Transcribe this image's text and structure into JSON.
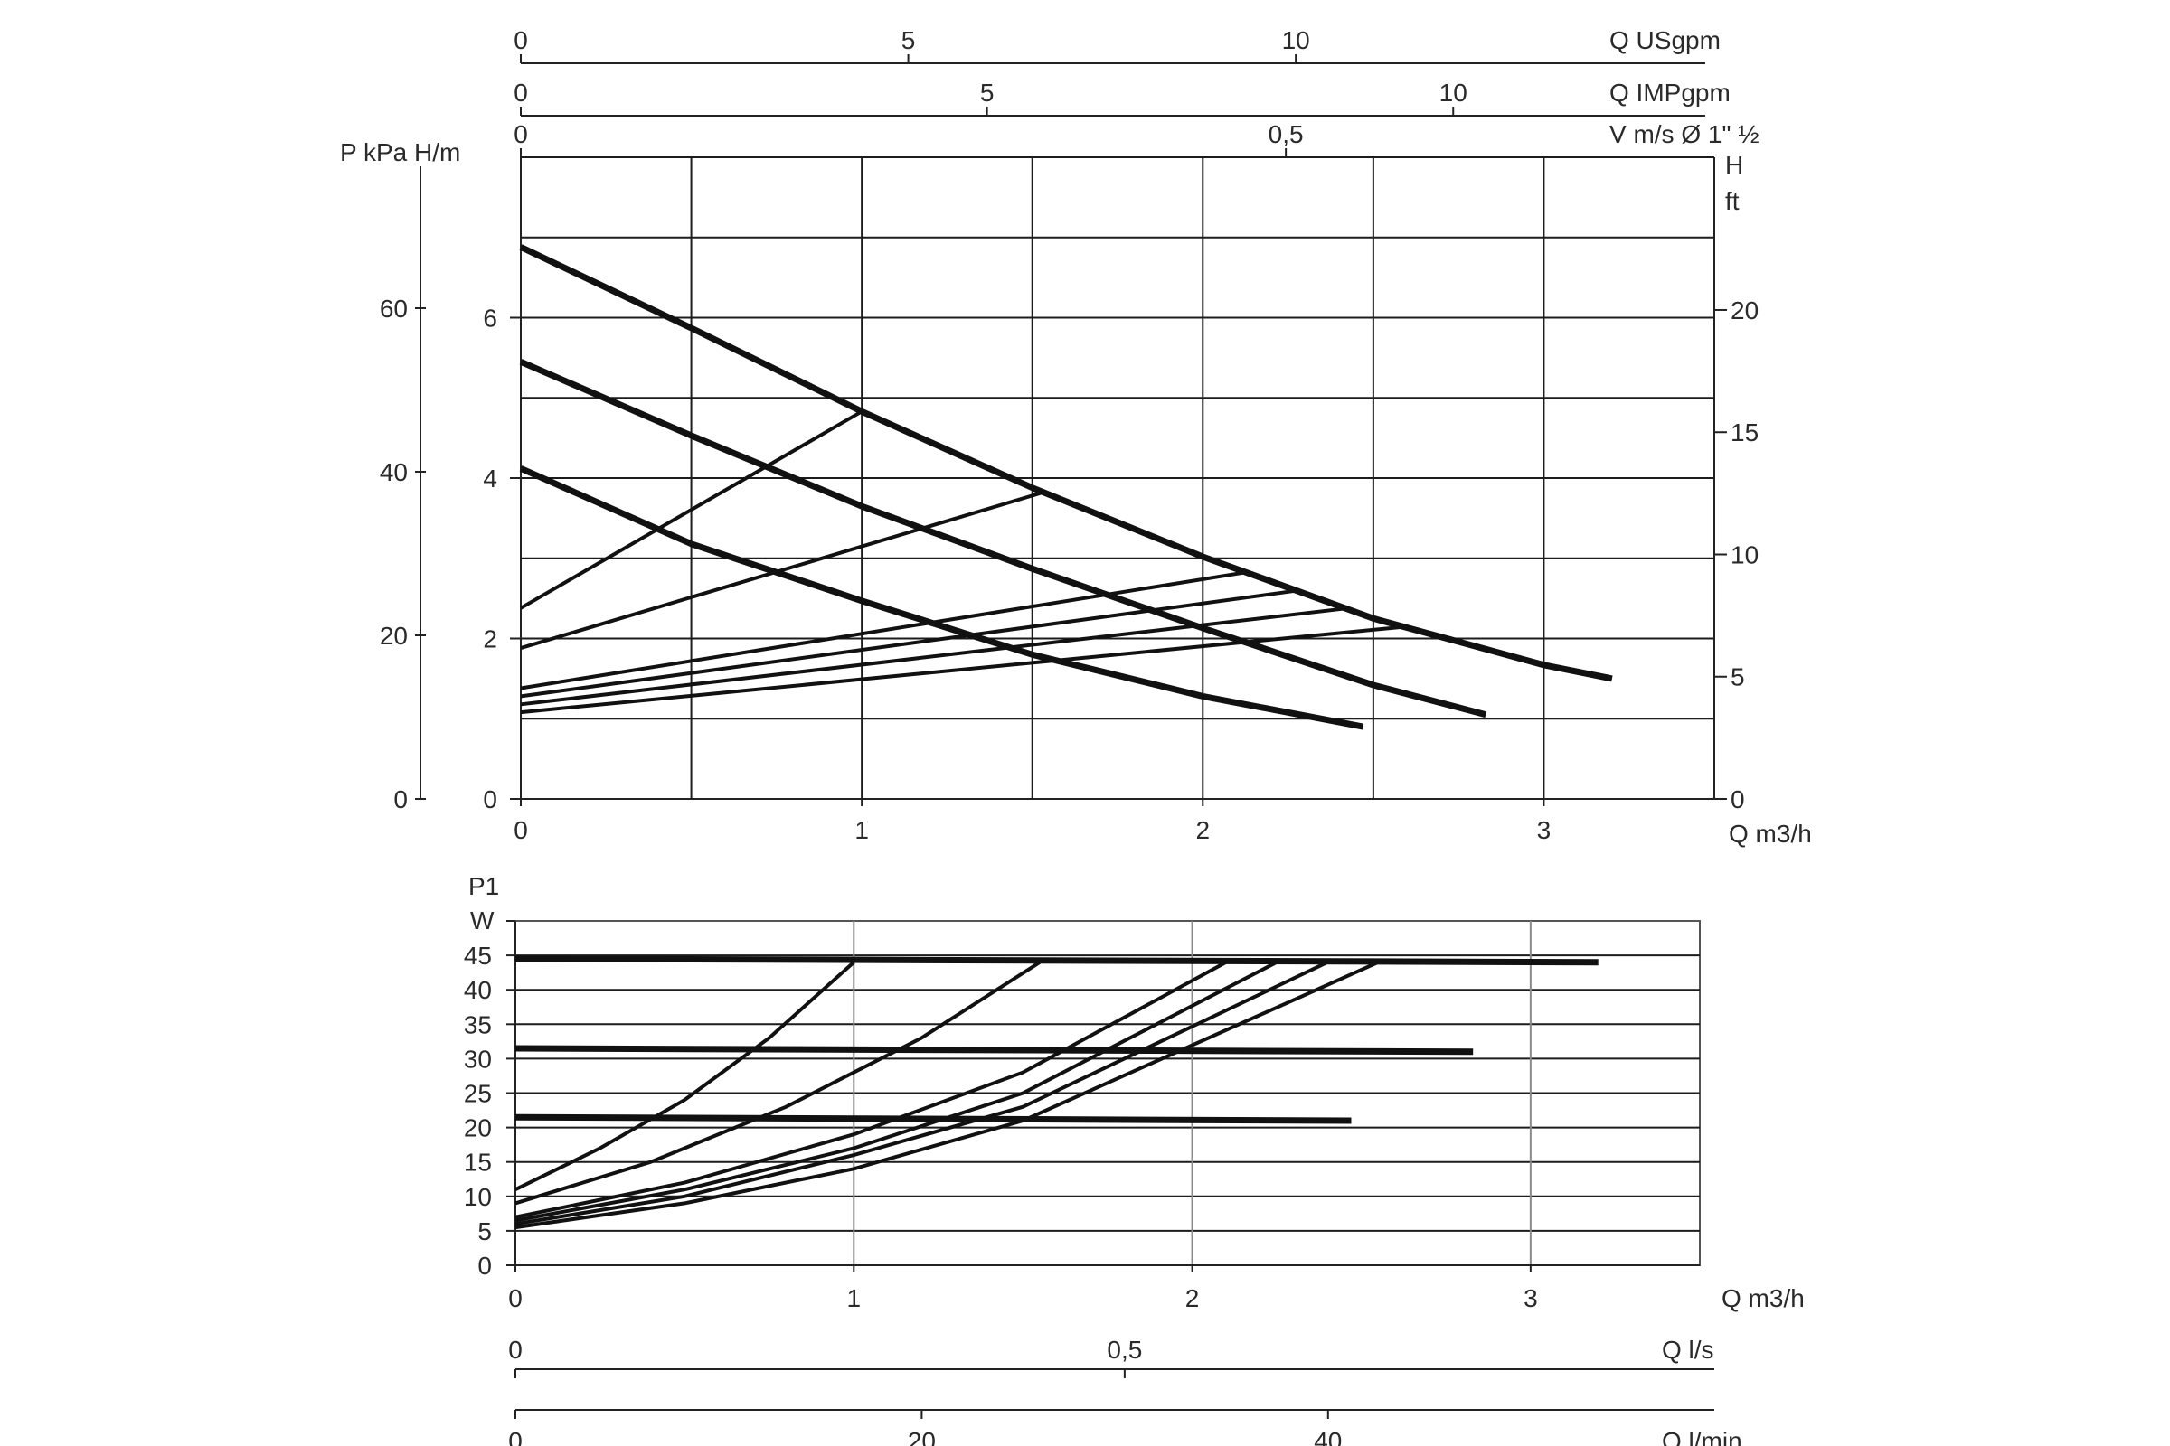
{
  "chart_data": [
    {
      "type": "line",
      "title": "",
      "xlabel": "Q m3/h",
      "ylabel": "P kPa H/m",
      "y2label": "H ft",
      "xlim": [
        0,
        3.5
      ],
      "ylim": [
        0,
        8
      ],
      "grid": true,
      "x_ticks": [
        "0",
        "1",
        "2",
        "3"
      ],
      "y_ticks_m": [
        "0",
        "2",
        "4",
        "6"
      ],
      "y_ticks_kpa": [
        "0",
        "20",
        "40",
        "60"
      ],
      "y_ticks_ft": [
        "0",
        "5",
        "10",
        "15",
        "20"
      ],
      "top_axes": [
        {
          "label": "Q USgpm",
          "ticks": [
            "0",
            "5",
            "10"
          ],
          "values": [
            0,
            5,
            10
          ],
          "max": 15.4
        },
        {
          "label": "Q IMPgpm",
          "ticks": [
            "0",
            "5",
            "10"
          ],
          "values": [
            0,
            5,
            10
          ],
          "max": 12.8
        },
        {
          "label": "V m/s Ø 1\" ½",
          "ticks": [
            "0",
            "0,5"
          ],
          "values": [
            0,
            0.5
          ],
          "max": 0.78
        }
      ],
      "series": [
        {
          "kind": "pump-curve",
          "x": [
            0,
            0.5,
            1.0,
            1.5,
            2.0,
            2.5,
            3.0,
            3.2
          ],
          "y": [
            6.88,
            5.87,
            4.83,
            3.88,
            3.02,
            2.25,
            1.67,
            1.5
          ]
        },
        {
          "kind": "pump-curve",
          "x": [
            0,
            0.5,
            1.0,
            1.5,
            2.0,
            2.5,
            2.83
          ],
          "y": [
            5.45,
            4.53,
            3.65,
            2.87,
            2.13,
            1.42,
            1.05
          ]
        },
        {
          "kind": "pump-curve",
          "x": [
            0,
            0.5,
            1.0,
            1.5,
            2.0,
            2.47
          ],
          "y": [
            4.12,
            3.18,
            2.47,
            1.8,
            1.28,
            0.9
          ]
        },
        {
          "kind": "system-curve",
          "x": [
            0,
            1.0
          ],
          "y": [
            2.38,
            4.83
          ]
        },
        {
          "kind": "system-curve",
          "x": [
            0,
            1.53
          ],
          "y": [
            1.88,
            3.82
          ]
        },
        {
          "kind": "system-curve",
          "x": [
            0,
            2.12
          ],
          "y": [
            1.38,
            2.82
          ]
        },
        {
          "kind": "system-curve",
          "x": [
            0,
            2.28
          ],
          "y": [
            1.28,
            2.6
          ]
        },
        {
          "kind": "system-curve",
          "x": [
            0,
            2.43
          ],
          "y": [
            1.18,
            2.38
          ]
        },
        {
          "kind": "system-curve",
          "x": [
            0,
            2.6
          ],
          "y": [
            1.08,
            2.15
          ]
        }
      ]
    },
    {
      "type": "line",
      "title": "",
      "xlabel": "Q m3/h",
      "ylabel": "P1 W",
      "xlim": [
        0,
        3.5
      ],
      "ylim": [
        0,
        50
      ],
      "grid": true,
      "x_ticks": [
        "0",
        "1",
        "2",
        "3"
      ],
      "y_ticks": [
        "0",
        "5",
        "10",
        "15",
        "20",
        "25",
        "30",
        "35",
        "40",
        "45"
      ],
      "bottom_axes": [
        {
          "label": "Q l/s",
          "ticks": [
            "0",
            "0,5"
          ],
          "values": [
            0,
            0.5
          ],
          "max": 0.972
        },
        {
          "label": "Q l/min",
          "ticks": [
            "0",
            "20",
            "40"
          ],
          "values": [
            0,
            20,
            40
          ],
          "max": 58.3
        }
      ],
      "series": [
        {
          "kind": "power-level",
          "x": [
            0,
            3.2
          ],
          "y": [
            44.5,
            44
          ]
        },
        {
          "kind": "power-level",
          "x": [
            0,
            2.83
          ],
          "y": [
            31.5,
            31
          ]
        },
        {
          "kind": "power-level",
          "x": [
            0,
            2.47
          ],
          "y": [
            21.5,
            21
          ]
        },
        {
          "kind": "power-curve",
          "x": [
            0,
            0.25,
            0.5,
            0.75,
            1.0
          ],
          "y": [
            11,
            17,
            24,
            33,
            44
          ]
        },
        {
          "kind": "power-curve",
          "x": [
            0,
            0.4,
            0.8,
            1.2,
            1.55
          ],
          "y": [
            9,
            15,
            23,
            33,
            44
          ]
        },
        {
          "kind": "power-curve",
          "x": [
            0,
            0.5,
            1.0,
            1.5,
            2.1
          ],
          "y": [
            7,
            12,
            19,
            28,
            44
          ]
        },
        {
          "kind": "power-curve",
          "x": [
            0,
            0.5,
            1.0,
            1.5,
            2.25
          ],
          "y": [
            6.5,
            11,
            17,
            25,
            44
          ]
        },
        {
          "kind": "power-curve",
          "x": [
            0,
            0.5,
            1.0,
            1.5,
            2.4
          ],
          "y": [
            6,
            10,
            16,
            23,
            44
          ]
        },
        {
          "kind": "power-curve",
          "x": [
            0,
            0.5,
            1.0,
            1.5,
            2.55
          ],
          "y": [
            5.5,
            9,
            14,
            21,
            44
          ]
        }
      ]
    }
  ]
}
